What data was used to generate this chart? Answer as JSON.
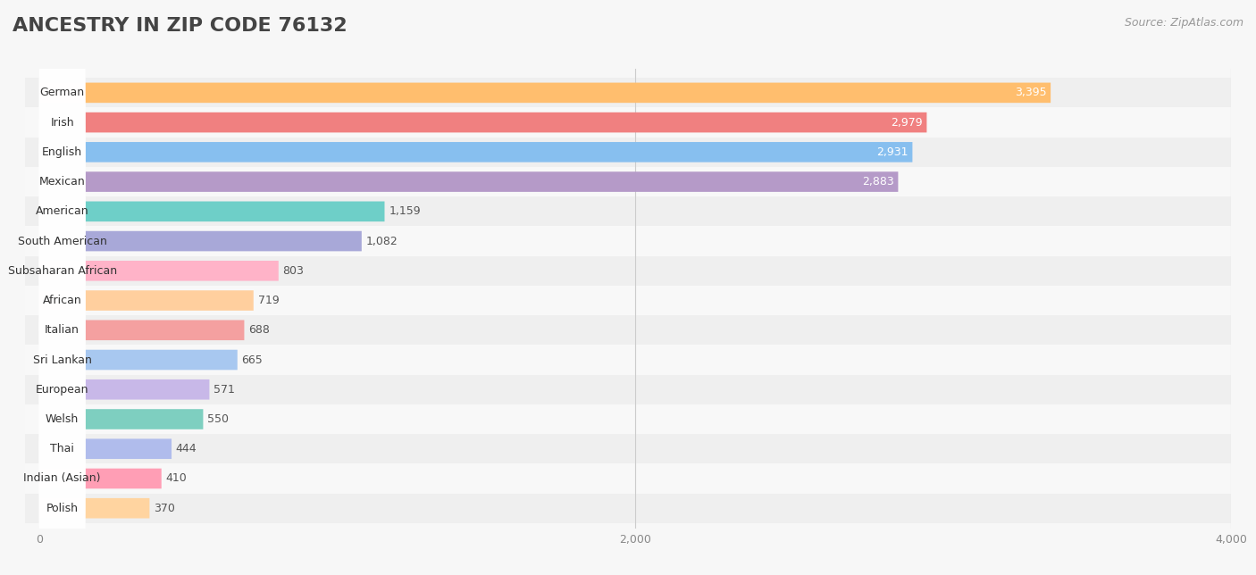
{
  "title": "ANCESTRY IN ZIP CODE 76132",
  "source": "Source: ZipAtlas.com",
  "categories": [
    "German",
    "Irish",
    "English",
    "Mexican",
    "American",
    "South American",
    "Subsaharan African",
    "African",
    "Italian",
    "Sri Lankan",
    "European",
    "Welsh",
    "Thai",
    "Indian (Asian)",
    "Polish"
  ],
  "values": [
    3395,
    2979,
    2931,
    2883,
    1159,
    1082,
    803,
    719,
    688,
    665,
    571,
    550,
    444,
    410,
    370
  ],
  "colors": [
    "#FFBE6E",
    "#F08080",
    "#87BFEF",
    "#B59AC8",
    "#6ECFC8",
    "#A8A8D8",
    "#FFB3C8",
    "#FFCF9E",
    "#F4A0A0",
    "#A8C8F0",
    "#C8B8E8",
    "#7ECFC0",
    "#B0BCEC",
    "#FF9EB5",
    "#FFD4A0"
  ],
  "xlim": [
    0,
    4000
  ],
  "xticks": [
    0,
    2000,
    4000
  ],
  "background_color": "#f7f7f7",
  "title_fontsize": 16,
  "source_fontsize": 9,
  "label_fontsize": 9,
  "value_fontsize": 9
}
